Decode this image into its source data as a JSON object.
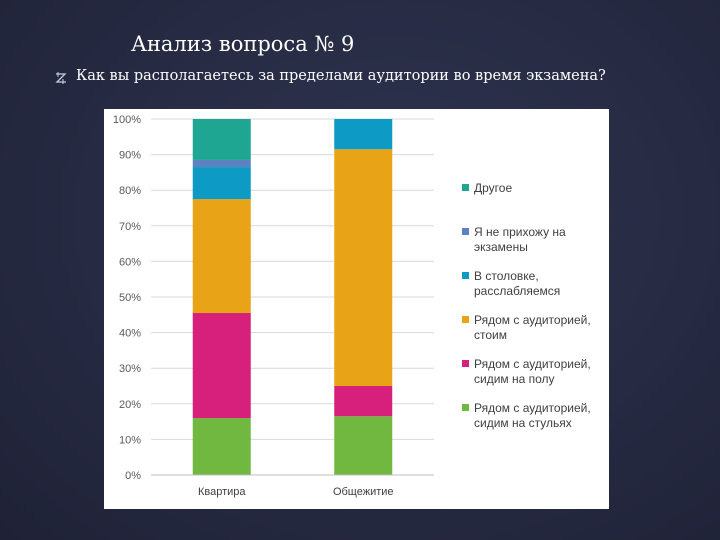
{
  "slide": {
    "title": "Анализ вопроса № 9",
    "question": "Как вы располагаетесь за пределами аудитории во время экзамена?",
    "bullet_icon": "z-shaped-bullet-icon"
  },
  "chart_data": {
    "type": "bar",
    "stacked": true,
    "normalized": true,
    "categories": [
      "Квартира",
      "Общежитие"
    ],
    "y_ticks": [
      "0%",
      "10%",
      "20%",
      "30%",
      "40%",
      "50%",
      "60%",
      "70%",
      "80%",
      "90%",
      "100%"
    ],
    "ylim": [
      0,
      100
    ],
    "grid": true,
    "legend_position": "right",
    "series": [
      {
        "name": "Рядом с аудиторией, сидим на стульях",
        "color": "#71b840",
        "values": [
          16,
          16.5
        ]
      },
      {
        "name": "Рядом с аудиторией, сидим на полу",
        "color": "#d6207c",
        "values": [
          29.5,
          8.5
        ]
      },
      {
        "name": "Рядом с аудиторией, стоим",
        "color": "#e8a316",
        "values": [
          32,
          66.5
        ]
      },
      {
        "name": "В столовке, расслабляемся",
        "color": "#0d9ac4",
        "values": [
          9,
          8.5
        ]
      },
      {
        "name": "Я не прихожу на экзамены",
        "color": "#5c82bf",
        "values": [
          2,
          0
        ]
      },
      {
        "name": "Другое",
        "color": "#1ea693",
        "values": [
          11.5,
          0
        ]
      }
    ]
  }
}
